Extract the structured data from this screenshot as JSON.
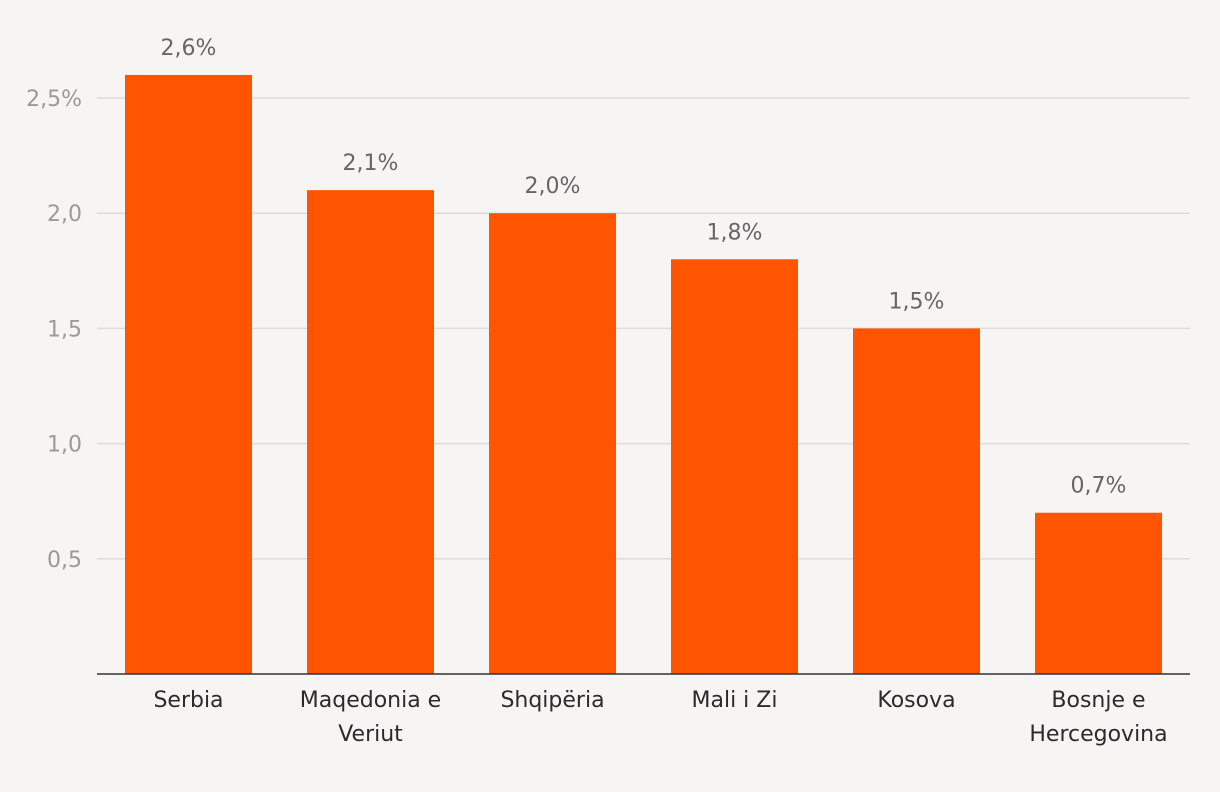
{
  "chart_data": {
    "type": "bar",
    "categories": [
      [
        "Serbia"
      ],
      [
        "Maqedonia e",
        "Veriut"
      ],
      [
        "Shqipëria"
      ],
      [
        "Mali i Zi"
      ],
      [
        "Kosova"
      ],
      [
        "Bosnje e",
        "Hercegovina"
      ]
    ],
    "values": [
      2.6,
      2.1,
      2.0,
      1.8,
      1.5,
      0.7
    ],
    "value_labels": [
      "2,6%",
      "2,1%",
      "2,0%",
      "1,8%",
      "1,5%",
      "0,7%"
    ],
    "y_ticks": [
      {
        "value": 0.5,
        "label": "0,5"
      },
      {
        "value": 1.0,
        "label": "1,0"
      },
      {
        "value": 1.5,
        "label": "1,5"
      },
      {
        "value": 2.0,
        "label": "2,0"
      },
      {
        "value": 2.5,
        "label": "2,5%"
      }
    ],
    "ylim": [
      0,
      2.6
    ],
    "grid": true,
    "bar_color": "#ff5500",
    "background": "#f7f5f3"
  }
}
